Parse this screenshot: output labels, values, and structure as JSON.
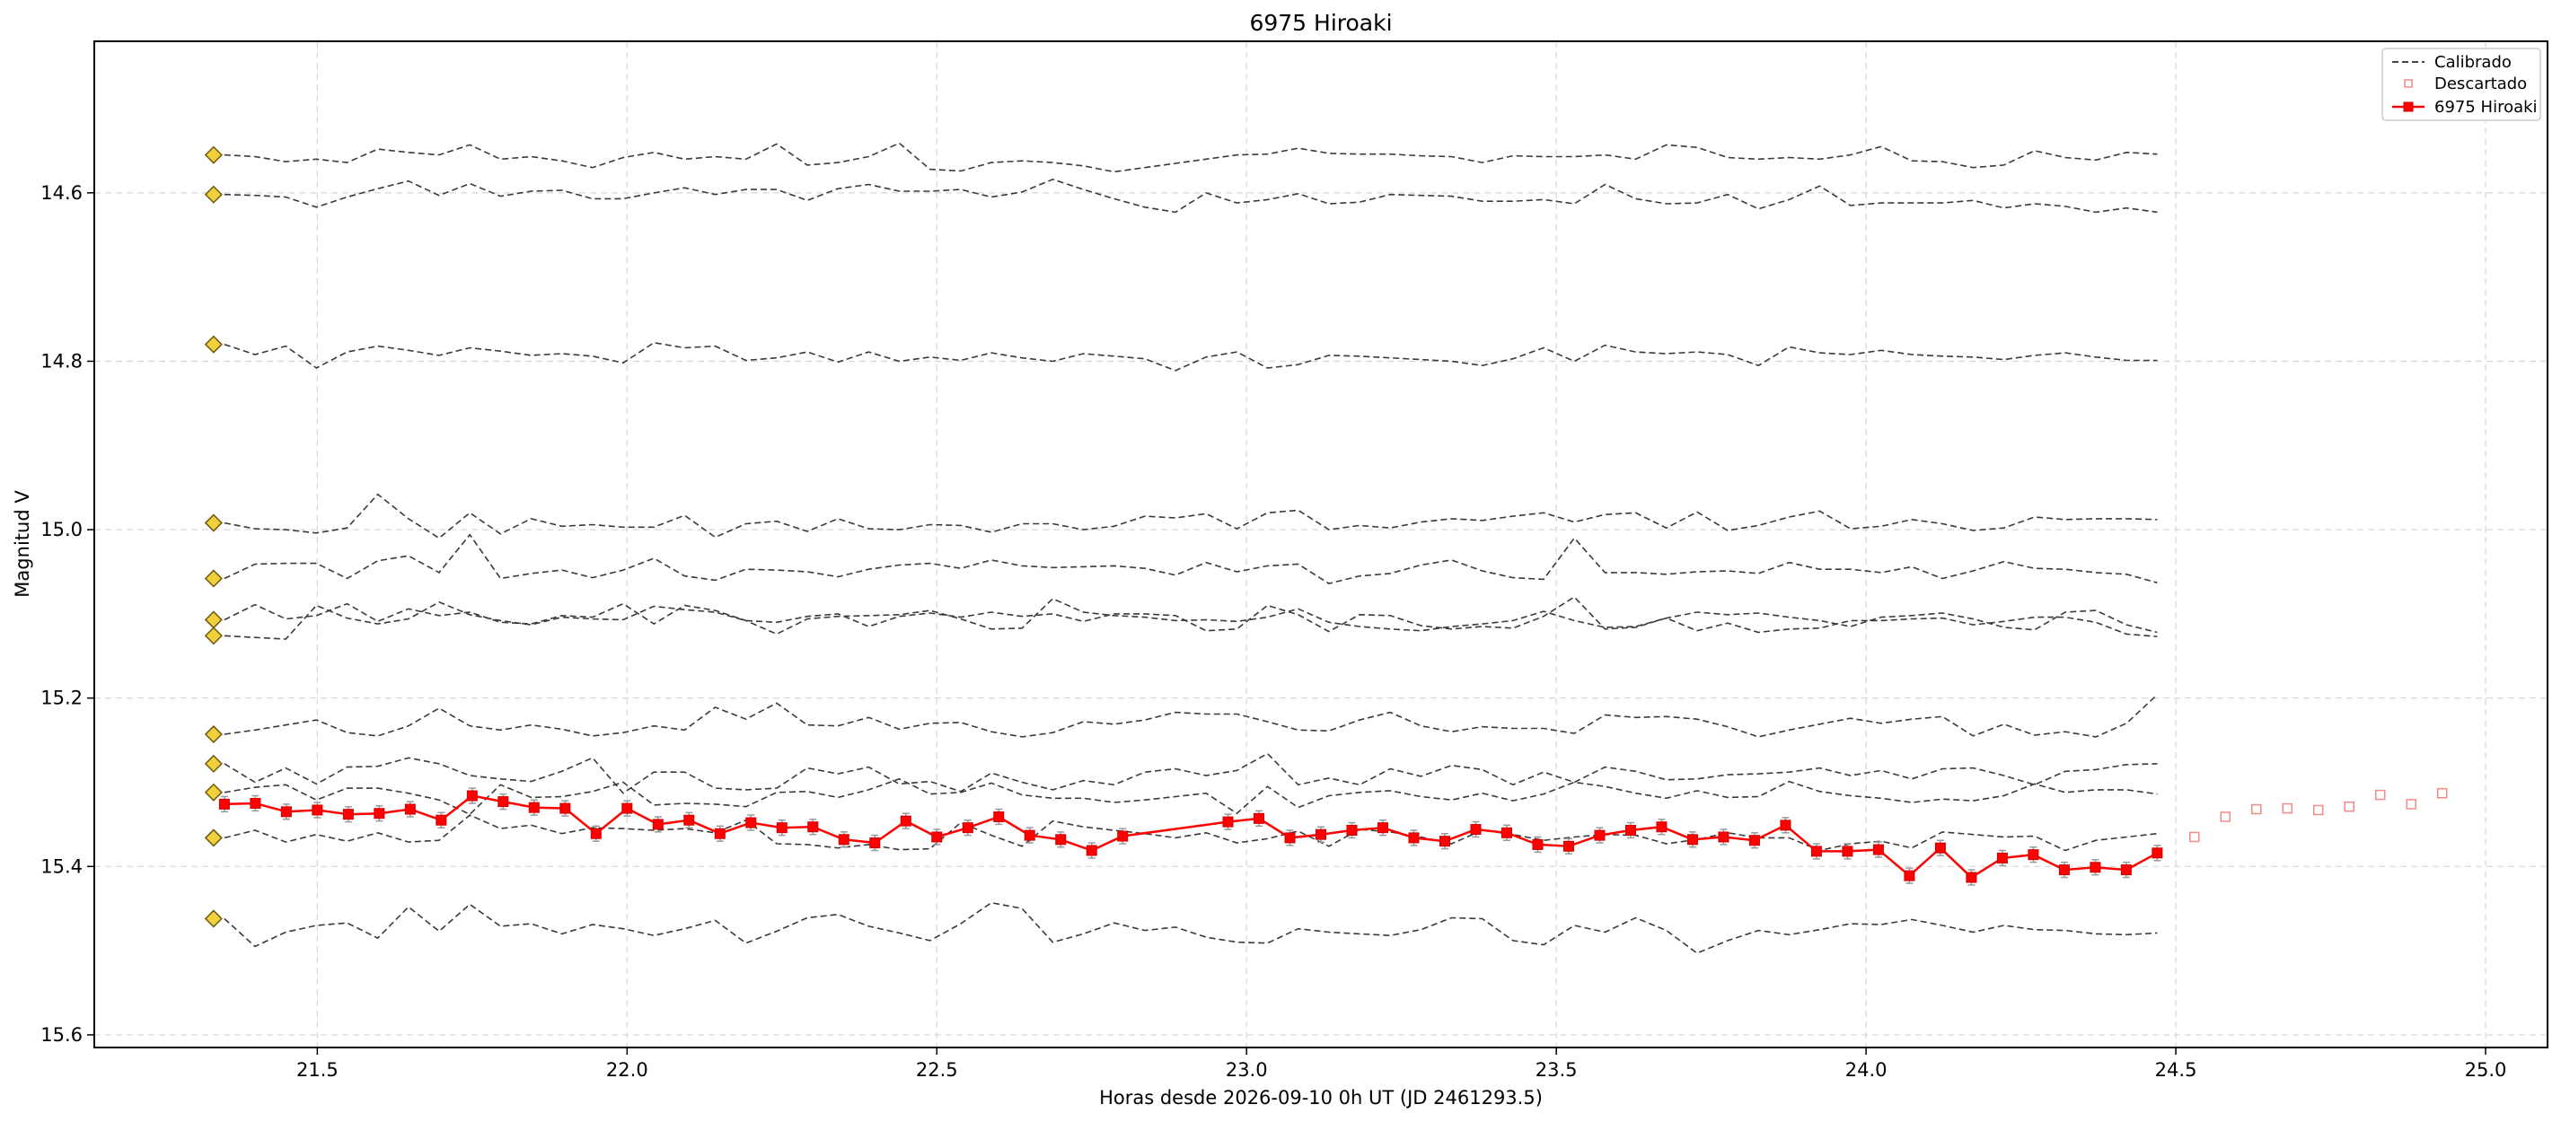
{
  "chart_data": {
    "type": "line",
    "title": "6975 Hiroaki",
    "xlabel": "Horas desde 2026-09-10 0h UT (JD 2461293.5)",
    "ylabel": "Magnitud V",
    "xlim": [
      21.14,
      25.1
    ],
    "ylim": [
      15.615,
      14.42
    ],
    "y_inverted": true,
    "grid": true,
    "legend_position": "top-right",
    "x_ticks": [
      21.5,
      22.0,
      22.5,
      23.0,
      23.5,
      24.0,
      24.5,
      25.0
    ],
    "x_tick_labels": [
      "21.5",
      "22.0",
      "22.5",
      "23.0",
      "23.5",
      "24.0",
      "24.5",
      "25.0"
    ],
    "y_ticks": [
      14.6,
      14.8,
      15.0,
      15.2,
      15.4,
      15.6
    ],
    "y_tick_labels": [
      "14.6",
      "14.8",
      "15.0",
      "15.2",
      "15.4",
      "15.6"
    ],
    "legend": [
      {
        "label": "Calibrado",
        "style": "dashed-line"
      },
      {
        "label": "Descartado",
        "style": "open-square"
      },
      {
        "label": "6975 Hiroaki",
        "style": "line-square-errorbar"
      }
    ],
    "comparison_x_start": 21.35,
    "comparison_x_end": 24.47,
    "comparison_stars": [
      {
        "values": [
          14.555,
          14.557,
          14.563,
          14.56,
          14.564,
          14.548,
          14.552,
          14.555,
          14.543,
          14.56,
          14.557,
          14.562,
          14.57,
          14.558,
          14.552,
          14.56,
          14.557,
          14.56,
          14.542,
          14.567,
          14.564,
          14.557,
          14.541,
          14.572,
          14.574,
          14.564,
          14.562,
          14.564,
          14.568,
          14.575,
          14.57,
          14.565,
          14.56,
          14.555,
          14.554,
          14.547,
          14.553,
          14.554,
          14.554,
          14.556,
          14.557,
          14.564,
          14.556,
          14.557,
          14.557,
          14.555,
          14.56,
          14.543,
          14.546,
          14.558,
          14.56,
          14.558,
          14.56,
          14.555,
          14.545,
          14.562,
          14.563,
          14.57,
          14.567,
          14.55,
          14.558,
          14.561,
          14.552,
          14.554
        ]
      },
      {
        "values": [
          14.602,
          14.603,
          14.605,
          14.617,
          14.605,
          14.595,
          14.586,
          14.603,
          14.589,
          14.604,
          14.598,
          14.597,
          14.607,
          14.607,
          14.6,
          14.594,
          14.602,
          14.596,
          14.596,
          14.609,
          14.595,
          14.59,
          14.598,
          14.598,
          14.596,
          14.605,
          14.599,
          14.584,
          14.596,
          14.607,
          14.617,
          14.623,
          14.6,
          14.612,
          14.608,
          14.601,
          14.613,
          14.611,
          14.602,
          14.603,
          14.604,
          14.61,
          14.61,
          14.608,
          14.613,
          14.59,
          14.607,
          14.613,
          14.612,
          14.602,
          14.619,
          14.608,
          14.592,
          14.615,
          14.612,
          14.612,
          14.612,
          14.609,
          14.618,
          14.613,
          14.616,
          14.623,
          14.618,
          14.623
        ]
      },
      {
        "values": [
          14.78,
          14.792,
          14.782,
          14.808,
          14.789,
          14.782,
          14.787,
          14.793,
          14.784,
          14.788,
          14.793,
          14.791,
          14.794,
          14.802,
          14.778,
          14.784,
          14.782,
          14.799,
          14.796,
          14.789,
          14.801,
          14.789,
          14.8,
          14.795,
          14.799,
          14.79,
          14.796,
          14.8,
          14.791,
          14.794,
          14.797,
          14.811,
          14.795,
          14.789,
          14.808,
          14.804,
          14.793,
          14.794,
          14.796,
          14.798,
          14.8,
          14.805,
          14.797,
          14.784,
          14.8,
          14.781,
          14.789,
          14.791,
          14.789,
          14.792,
          14.805,
          14.783,
          14.79,
          14.792,
          14.787,
          14.792,
          14.794,
          14.795,
          14.798,
          14.793,
          14.79,
          14.795,
          14.799,
          14.799
        ]
      },
      {
        "values": [
          14.992,
          14.999,
          15.0,
          15.004,
          14.998,
          14.958,
          14.987,
          15.01,
          14.98,
          15.005,
          14.987,
          14.996,
          14.994,
          14.997,
          14.997,
          14.983,
          15.009,
          14.993,
          14.99,
          15.002,
          14.987,
          14.999,
          15.0,
          14.994,
          14.995,
          15.003,
          14.993,
          14.993,
          15.0,
          14.996,
          14.984,
          14.986,
          14.981,
          14.999,
          14.98,
          14.977,
          15.0,
          14.995,
          14.998,
          14.991,
          14.987,
          14.989,
          14.984,
          14.98,
          14.991,
          14.982,
          14.98,
          14.998,
          14.979,
          15.001,
          14.995,
          14.985,
          14.978,
          14.999,
          14.996,
          14.988,
          14.993,
          15.001,
          14.998,
          14.985,
          14.988,
          14.987,
          14.987,
          14.988
        ]
      },
      {
        "values": [
          15.058,
          15.041,
          15.04,
          15.04,
          15.058,
          15.037,
          15.031,
          15.051,
          15.006,
          15.058,
          15.052,
          15.048,
          15.057,
          15.048,
          15.034,
          15.055,
          15.06,
          15.047,
          15.048,
          15.05,
          15.056,
          15.047,
          15.042,
          15.04,
          15.046,
          15.036,
          15.043,
          15.045,
          15.044,
          15.043,
          15.046,
          15.054,
          15.039,
          15.05,
          15.043,
          15.041,
          15.064,
          15.055,
          15.052,
          15.042,
          15.036,
          15.049,
          15.057,
          15.059,
          15.01,
          15.051,
          15.051,
          15.053,
          15.05,
          15.049,
          15.052,
          15.039,
          15.047,
          15.047,
          15.051,
          15.044,
          15.058,
          15.049,
          15.038,
          15.046,
          15.047,
          15.051,
          15.053,
          15.063
        ]
      },
      {
        "values": [
          15.107,
          15.089,
          15.106,
          15.102,
          15.088,
          15.109,
          15.094,
          15.102,
          15.098,
          15.11,
          15.112,
          15.102,
          15.104,
          15.088,
          15.112,
          15.09,
          15.096,
          15.108,
          15.124,
          15.106,
          15.103,
          15.102,
          15.101,
          15.096,
          15.106,
          15.118,
          15.117,
          15.082,
          15.098,
          15.102,
          15.104,
          15.108,
          15.107,
          15.109,
          15.104,
          15.094,
          15.11,
          15.115,
          15.118,
          15.12,
          15.115,
          15.112,
          15.108,
          15.097,
          15.108,
          15.116,
          15.115,
          15.105,
          15.098,
          15.101,
          15.099,
          15.104,
          15.108,
          15.115,
          15.104,
          15.102,
          15.099,
          15.106,
          15.116,
          15.119,
          15.098,
          15.096,
          15.113,
          15.122
        ]
      },
      {
        "values": [
          15.126,
          15.128,
          15.13,
          15.09,
          15.105,
          15.112,
          15.106,
          15.086,
          15.101,
          15.108,
          15.113,
          15.104,
          15.106,
          15.107,
          15.091,
          15.095,
          15.098,
          15.108,
          15.11,
          15.103,
          15.1,
          15.115,
          15.103,
          15.099,
          15.104,
          15.098,
          15.103,
          15.1,
          15.109,
          15.1,
          15.1,
          15.102,
          15.12,
          15.118,
          15.09,
          15.101,
          15.121,
          15.101,
          15.102,
          15.114,
          15.118,
          15.115,
          15.117,
          15.103,
          15.08,
          15.118,
          15.116,
          15.105,
          15.12,
          15.111,
          15.122,
          15.118,
          15.117,
          15.108,
          15.108,
          15.106,
          15.105,
          15.113,
          15.109,
          15.104,
          15.104,
          15.11,
          15.124,
          15.127
        ]
      },
      {
        "values": [
          15.243,
          15.238,
          15.232,
          15.226,
          15.241,
          15.245,
          15.233,
          15.212,
          15.233,
          15.238,
          15.232,
          15.237,
          15.245,
          15.241,
          15.233,
          15.238,
          15.211,
          15.225,
          15.206,
          15.232,
          15.233,
          15.223,
          15.237,
          15.23,
          15.229,
          15.24,
          15.246,
          15.241,
          15.228,
          15.231,
          15.226,
          15.217,
          15.219,
          15.219,
          15.228,
          15.238,
          15.239,
          15.226,
          15.217,
          15.233,
          15.24,
          15.234,
          15.236,
          15.236,
          15.242,
          15.22,
          15.223,
          15.222,
          15.225,
          15.234,
          15.246,
          15.238,
          15.231,
          15.224,
          15.23,
          15.225,
          15.222,
          15.245,
          15.231,
          15.244,
          15.24,
          15.246,
          15.23,
          15.196
        ]
      },
      {
        "values": [
          15.278,
          15.3,
          15.283,
          15.302,
          15.282,
          15.281,
          15.271,
          15.278,
          15.292,
          15.296,
          15.299,
          15.287,
          15.271,
          15.313,
          15.288,
          15.288,
          15.307,
          15.309,
          15.307,
          15.283,
          15.29,
          15.282,
          15.302,
          15.299,
          15.311,
          15.289,
          15.3,
          15.309,
          15.298,
          15.303,
          15.288,
          15.284,
          15.292,
          15.286,
          15.266,
          15.303,
          15.295,
          15.303,
          15.284,
          15.293,
          15.28,
          15.285,
          15.303,
          15.288,
          15.3,
          15.282,
          15.287,
          15.297,
          15.296,
          15.291,
          15.29,
          15.288,
          15.283,
          15.292,
          15.286,
          15.296,
          15.284,
          15.283,
          15.292,
          15.303,
          15.287,
          15.285,
          15.279,
          15.278
        ]
      },
      {
        "values": [
          15.312,
          15.306,
          15.303,
          15.321,
          15.307,
          15.307,
          15.313,
          15.321,
          15.338,
          15.303,
          15.318,
          15.317,
          15.311,
          15.3,
          15.327,
          15.325,
          15.326,
          15.329,
          15.312,
          15.311,
          15.318,
          15.309,
          15.296,
          15.314,
          15.312,
          15.301,
          15.315,
          15.319,
          15.319,
          15.324,
          15.321,
          15.317,
          15.313,
          15.337,
          15.305,
          15.33,
          15.316,
          15.312,
          15.31,
          15.317,
          15.321,
          15.313,
          15.322,
          15.314,
          15.3,
          15.305,
          15.313,
          15.319,
          15.31,
          15.318,
          15.317,
          15.299,
          15.311,
          15.316,
          15.319,
          15.324,
          15.32,
          15.322,
          15.316,
          15.302,
          15.312,
          15.309,
          15.309,
          15.314
        ]
      },
      {
        "values": [
          15.366,
          15.357,
          15.371,
          15.362,
          15.37,
          15.36,
          15.371,
          15.369,
          15.339,
          15.355,
          15.351,
          15.361,
          15.354,
          15.355,
          15.357,
          15.355,
          15.36,
          15.345,
          15.373,
          15.374,
          15.378,
          15.374,
          15.38,
          15.379,
          15.348,
          15.363,
          15.376,
          15.346,
          15.353,
          15.357,
          15.361,
          15.366,
          15.36,
          15.372,
          15.367,
          15.358,
          15.376,
          15.356,
          15.359,
          15.365,
          15.373,
          15.357,
          15.362,
          15.369,
          15.365,
          15.362,
          15.363,
          15.373,
          15.368,
          15.36,
          15.366,
          15.366,
          15.381,
          15.373,
          15.37,
          15.378,
          15.359,
          15.362,
          15.365,
          15.364,
          15.381,
          15.369,
          15.365,
          15.361
        ]
      },
      {
        "values": [
          15.462,
          15.495,
          15.478,
          15.47,
          15.467,
          15.485,
          15.448,
          15.477,
          15.445,
          15.471,
          15.468,
          15.48,
          15.469,
          15.474,
          15.482,
          15.474,
          15.464,
          15.491,
          15.477,
          15.461,
          15.457,
          15.471,
          15.479,
          15.488,
          15.468,
          15.443,
          15.45,
          15.49,
          15.48,
          15.467,
          15.476,
          15.472,
          15.484,
          15.49,
          15.491,
          15.474,
          15.478,
          15.48,
          15.482,
          15.475,
          15.461,
          15.462,
          15.488,
          15.493,
          15.47,
          15.478,
          15.461,
          15.476,
          15.503,
          15.488,
          15.476,
          15.481,
          15.475,
          15.468,
          15.469,
          15.463,
          15.47,
          15.478,
          15.47,
          15.475,
          15.476,
          15.48,
          15.481,
          15.479
        ]
      }
    ],
    "series": [
      {
        "name": "6975 Hiroaki",
        "x": [
          21.35,
          21.4,
          21.45,
          21.5,
          21.55,
          21.6,
          21.65,
          21.7,
          21.75,
          21.8,
          21.85,
          21.9,
          21.95,
          22.0,
          22.05,
          22.1,
          22.15,
          22.2,
          22.25,
          22.3,
          22.35,
          22.4,
          22.45,
          22.5,
          22.55,
          22.6,
          22.65,
          22.7,
          22.75,
          22.8,
          22.97,
          23.02,
          23.07,
          23.12,
          23.17,
          23.22,
          23.27,
          23.32,
          23.37,
          23.42,
          23.47,
          23.52,
          23.57,
          23.62,
          23.67,
          23.72,
          23.77,
          23.82,
          23.87,
          23.92,
          23.97,
          24.02,
          24.07,
          24.12,
          24.17,
          24.22,
          24.27,
          24.32,
          24.37,
          24.42,
          24.47
        ],
        "y": [
          15.326,
          15.325,
          15.335,
          15.333,
          15.338,
          15.337,
          15.332,
          15.345,
          15.316,
          15.323,
          15.33,
          15.331,
          15.361,
          15.331,
          15.35,
          15.345,
          15.361,
          15.348,
          15.354,
          15.353,
          15.368,
          15.372,
          15.346,
          15.365,
          15.354,
          15.341,
          15.363,
          15.368,
          15.381,
          15.364,
          15.347,
          15.343,
          15.366,
          15.362,
          15.357,
          15.354,
          15.366,
          15.37,
          15.356,
          15.36,
          15.374,
          15.376,
          15.363,
          15.357,
          15.353,
          15.368,
          15.365,
          15.369,
          15.351,
          15.382,
          15.382,
          15.38,
          15.411,
          15.378,
          15.413,
          15.39,
          15.386,
          15.404,
          15.401,
          15.404,
          15.384
        ],
        "yerr": 0.009
      },
      {
        "name": "Descartado",
        "x": [
          24.53,
          24.58,
          24.63,
          24.68,
          24.73,
          24.78,
          24.83,
          24.88,
          24.93
        ],
        "y": [
          15.365,
          15.341,
          15.332,
          15.331,
          15.333,
          15.329,
          15.315,
          15.326,
          15.313
        ]
      }
    ],
    "comparison_marker_values": [
      14.555,
      14.602,
      14.78,
      14.992,
      15.058,
      15.107,
      15.126,
      15.243,
      15.278,
      15.312,
      15.366,
      15.462
    ]
  }
}
